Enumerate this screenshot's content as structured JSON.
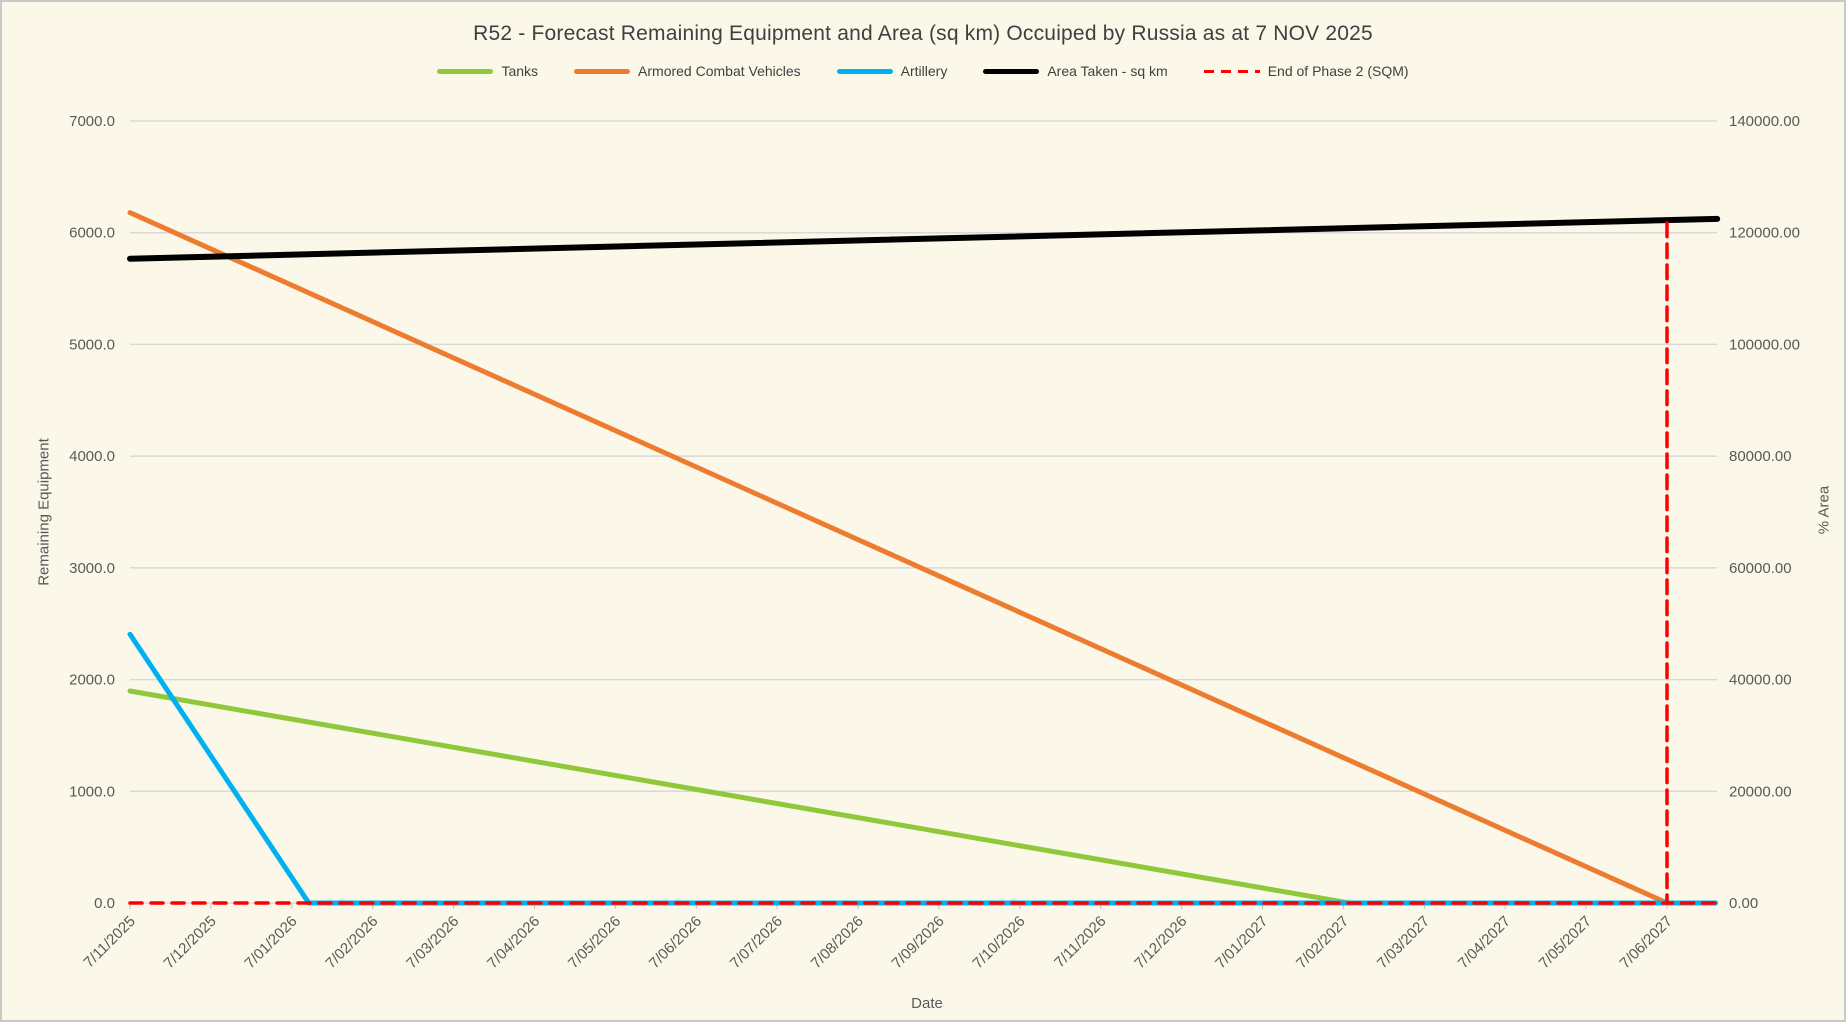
{
  "chart_data": {
    "type": "line",
    "title": "R52 - Forecast Remaining Equipment and Area (sq km) Occuiped by Russia as at 7 NOV 2025",
    "xlabel": "Date",
    "ylabel_left": "Remaining Equipment",
    "ylabel_right": "% Area",
    "legend_position": "top",
    "grid": "horizontal",
    "background_color": "#FCF8E9",
    "gridline_color": "#D9D9D9",
    "tick_color": "#BFBFBF",
    "label_color": "#595959",
    "x_categories": [
      "7/11/2025",
      "7/12/2025",
      "7/01/2026",
      "7/02/2026",
      "7/03/2026",
      "7/04/2026",
      "7/05/2026",
      "7/06/2026",
      "7/07/2026",
      "7/08/2026",
      "7/09/2026",
      "7/10/2026",
      "7/11/2026",
      "7/12/2026",
      "7/01/2027",
      "7/02/2027",
      "7/03/2027",
      "7/04/2027",
      "7/05/2027",
      "7/06/2027"
    ],
    "ylim_left": [
      0,
      7000
    ],
    "ylim_right": [
      0,
      140000
    ],
    "left_axis_ticks": [
      "7000.0",
      "6000.0",
      "5000.0",
      "4000.0",
      "3000.0",
      "2000.0",
      "1000.0",
      "0.0"
    ],
    "right_axis_ticks": [
      "140000.00",
      "120000.00",
      "100000.00",
      "80000.00",
      "60000.00",
      "40000.00",
      "20000.00",
      "0.00"
    ],
    "series": [
      {
        "name": "Tanks",
        "axis": "left",
        "color": "#90C83C",
        "dash": false,
        "stroke_width": 5,
        "values": [
          1898,
          1772,
          1646,
          1520,
          1394,
          1268,
          1142,
          1016,
          890,
          764,
          638,
          512,
          386,
          260,
          134,
          8,
          0,
          0,
          0,
          0
        ],
        "breakpoints": [
          [
            0,
            1898
          ],
          [
            15.07,
            0
          ],
          [
            19.6,
            0
          ]
        ]
      },
      {
        "name": "Armored Combat Vehicles",
        "axis": "left",
        "color": "#EC7C30",
        "dash": false,
        "stroke_width": 5,
        "values": [
          6180,
          5855,
          5529,
          5204,
          4879,
          4554,
          4228,
          3903,
          3578,
          3253,
          2927,
          2602,
          2277,
          1952,
          1626,
          1301,
          976,
          651,
          325,
          0
        ],
        "breakpoints": [
          [
            0,
            6180
          ],
          [
            19,
            0
          ]
        ]
      },
      {
        "name": "Artillery",
        "axis": "left",
        "color": "#00B0F0",
        "dash": false,
        "stroke_width": 5,
        "values": [
          2405,
          1317,
          229,
          0,
          0,
          0,
          0,
          0,
          0,
          0,
          0,
          0,
          0,
          0,
          0,
          0,
          0,
          0,
          0,
          0
        ],
        "breakpoints": [
          [
            0,
            2405
          ],
          [
            2.21,
            0
          ],
          [
            19.6,
            0
          ]
        ]
      },
      {
        "name": "Area Taken - sq km",
        "axis": "right",
        "color": "#000000",
        "dash": false,
        "stroke_width": 6,
        "values": [
          115350,
          115721,
          116092,
          116463,
          116834,
          117205,
          117576,
          117947,
          118318,
          118690,
          119061,
          119432,
          119803,
          120174,
          120545,
          120916,
          121287,
          121658,
          122029,
          122400
        ],
        "breakpoints": [
          [
            0,
            115350
          ],
          [
            19.62,
            122480
          ]
        ]
      },
      {
        "name": "End of Phase 2 (SQM)",
        "axis": "right",
        "color": "#FF0000",
        "dash": true,
        "stroke_width": 3.5,
        "values": [
          0,
          0,
          0,
          0,
          0,
          0,
          0,
          0,
          0,
          0,
          0,
          0,
          0,
          0,
          0,
          0,
          0,
          0,
          0,
          122400
        ],
        "breakpoints": [
          [
            0,
            0
          ],
          [
            19,
            0
          ],
          [
            19,
            122400
          ],
          [
            19,
            0
          ],
          [
            19.6,
            0
          ]
        ]
      }
    ]
  }
}
